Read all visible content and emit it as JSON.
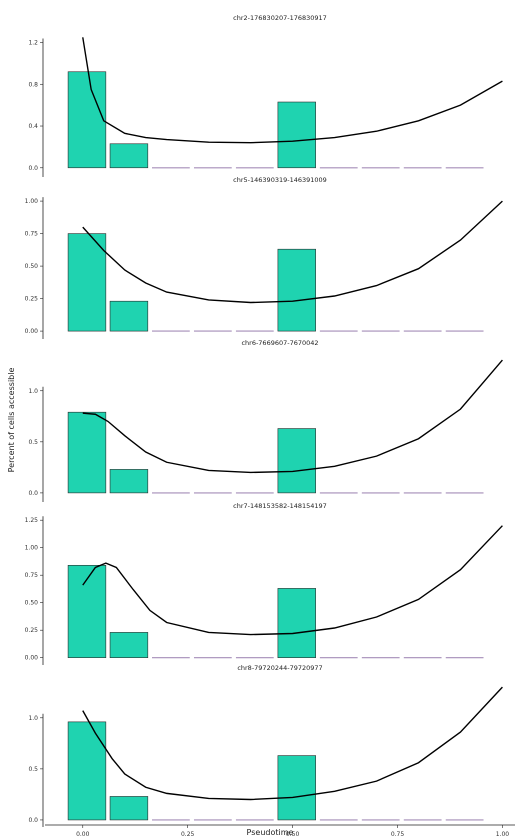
{
  "chart_data": {
    "type": "bar",
    "xlabel": "Pseudotime",
    "ylabel": "Percent of cells accessible",
    "xlim": [
      -0.09,
      1.03
    ],
    "x_ticks": [
      0.0,
      0.25,
      0.5,
      0.75,
      1.0
    ],
    "x_tick_labels": [
      "0.00",
      "0.25",
      "0.50",
      "0.75",
      "1.00"
    ],
    "bin_centers": [
      0.05,
      0.15,
      0.25,
      0.35,
      0.45,
      0.55,
      0.65,
      0.75,
      0.85,
      0.95
    ],
    "bin_width": 0.09,
    "panels": [
      {
        "title": "chr2-176830207-176830917",
        "ylim": [
          -0.05,
          1.32
        ],
        "y_ticks": [
          0,
          0.4,
          0.8,
          1.2
        ],
        "y_tick_labels": [
          "0.0",
          "0.4",
          "0.8",
          "1.2"
        ],
        "bar_values": [
          0.92,
          0.23,
          0,
          0,
          0,
          0.63,
          0,
          0,
          0,
          0
        ],
        "curve": [
          [
            0,
            1.25
          ],
          [
            0.02,
            0.75
          ],
          [
            0.05,
            0.45
          ],
          [
            0.1,
            0.33
          ],
          [
            0.15,
            0.29
          ],
          [
            0.2,
            0.27
          ],
          [
            0.3,
            0.245
          ],
          [
            0.4,
            0.24
          ],
          [
            0.5,
            0.255
          ],
          [
            0.6,
            0.29
          ],
          [
            0.7,
            0.35
          ],
          [
            0.8,
            0.45
          ],
          [
            0.9,
            0.6
          ],
          [
            1.0,
            0.83
          ]
        ]
      },
      {
        "title": "chr5-146390319-146391009",
        "ylim": [
          -0.03,
          1.07
        ],
        "y_ticks": [
          0,
          0.25,
          0.5,
          0.75,
          1.0
        ],
        "y_tick_labels": [
          "0.00",
          "0.25",
          "0.50",
          "0.75",
          "1.00"
        ],
        "bar_values": [
          0.75,
          0.23,
          0,
          0,
          0,
          0.63,
          0,
          0,
          0,
          0
        ],
        "curve": [
          [
            0,
            0.8
          ],
          [
            0.05,
            0.62
          ],
          [
            0.1,
            0.47
          ],
          [
            0.15,
            0.37
          ],
          [
            0.2,
            0.3
          ],
          [
            0.3,
            0.24
          ],
          [
            0.4,
            0.22
          ],
          [
            0.5,
            0.23
          ],
          [
            0.6,
            0.27
          ],
          [
            0.7,
            0.35
          ],
          [
            0.8,
            0.48
          ],
          [
            0.9,
            0.7
          ],
          [
            1.0,
            1.0
          ]
        ]
      },
      {
        "title": "chr6-7669607-7670042",
        "ylim": [
          -0.05,
          1.35
        ],
        "y_ticks": [
          0,
          0.5,
          1.0
        ],
        "y_tick_labels": [
          "0.0",
          "0.5",
          "1.0"
        ],
        "bar_values": [
          0.79,
          0.23,
          0,
          0,
          0,
          0.63,
          0,
          0,
          0,
          0
        ],
        "curve": [
          [
            0,
            0.78
          ],
          [
            0.03,
            0.77
          ],
          [
            0.06,
            0.7
          ],
          [
            0.1,
            0.56
          ],
          [
            0.15,
            0.4
          ],
          [
            0.2,
            0.3
          ],
          [
            0.3,
            0.22
          ],
          [
            0.4,
            0.2
          ],
          [
            0.5,
            0.21
          ],
          [
            0.6,
            0.26
          ],
          [
            0.7,
            0.36
          ],
          [
            0.8,
            0.53
          ],
          [
            0.9,
            0.82
          ],
          [
            1.0,
            1.3
          ]
        ]
      },
      {
        "title": "chr7-148153582-148154197",
        "ylim": [
          -0.03,
          1.27
        ],
        "y_ticks": [
          0,
          0.25,
          0.5,
          0.75,
          1.0,
          1.25
        ],
        "y_tick_labels": [
          "0.00",
          "0.25",
          "0.50",
          "0.75",
          "1.00",
          "1.25"
        ],
        "bar_values": [
          0.84,
          0.23,
          0,
          0,
          0,
          0.63,
          0,
          0,
          0,
          0
        ],
        "curve": [
          [
            0,
            0.66
          ],
          [
            0.03,
            0.82
          ],
          [
            0.055,
            0.86
          ],
          [
            0.08,
            0.82
          ],
          [
            0.12,
            0.62
          ],
          [
            0.16,
            0.43
          ],
          [
            0.2,
            0.32
          ],
          [
            0.3,
            0.23
          ],
          [
            0.4,
            0.21
          ],
          [
            0.5,
            0.22
          ],
          [
            0.6,
            0.27
          ],
          [
            0.7,
            0.37
          ],
          [
            0.8,
            0.53
          ],
          [
            0.9,
            0.8
          ],
          [
            1.0,
            1.2
          ]
        ]
      },
      {
        "title": "chr8-79720244-79720977",
        "ylim": [
          -0.03,
          1.37
        ],
        "y_ticks": [
          0,
          0.5,
          1.0
        ],
        "y_tick_labels": [
          "0.0",
          "0.5",
          "1.0"
        ],
        "bar_values": [
          0.96,
          0.23,
          0,
          0,
          0,
          0.63,
          0,
          0,
          0,
          0
        ],
        "curve": [
          [
            0,
            1.07
          ],
          [
            0.03,
            0.85
          ],
          [
            0.07,
            0.6
          ],
          [
            0.1,
            0.45
          ],
          [
            0.15,
            0.32
          ],
          [
            0.2,
            0.26
          ],
          [
            0.3,
            0.21
          ],
          [
            0.4,
            0.2
          ],
          [
            0.5,
            0.22
          ],
          [
            0.6,
            0.28
          ],
          [
            0.7,
            0.38
          ],
          [
            0.8,
            0.56
          ],
          [
            0.9,
            0.86
          ],
          [
            1.0,
            1.3
          ]
        ]
      }
    ]
  }
}
